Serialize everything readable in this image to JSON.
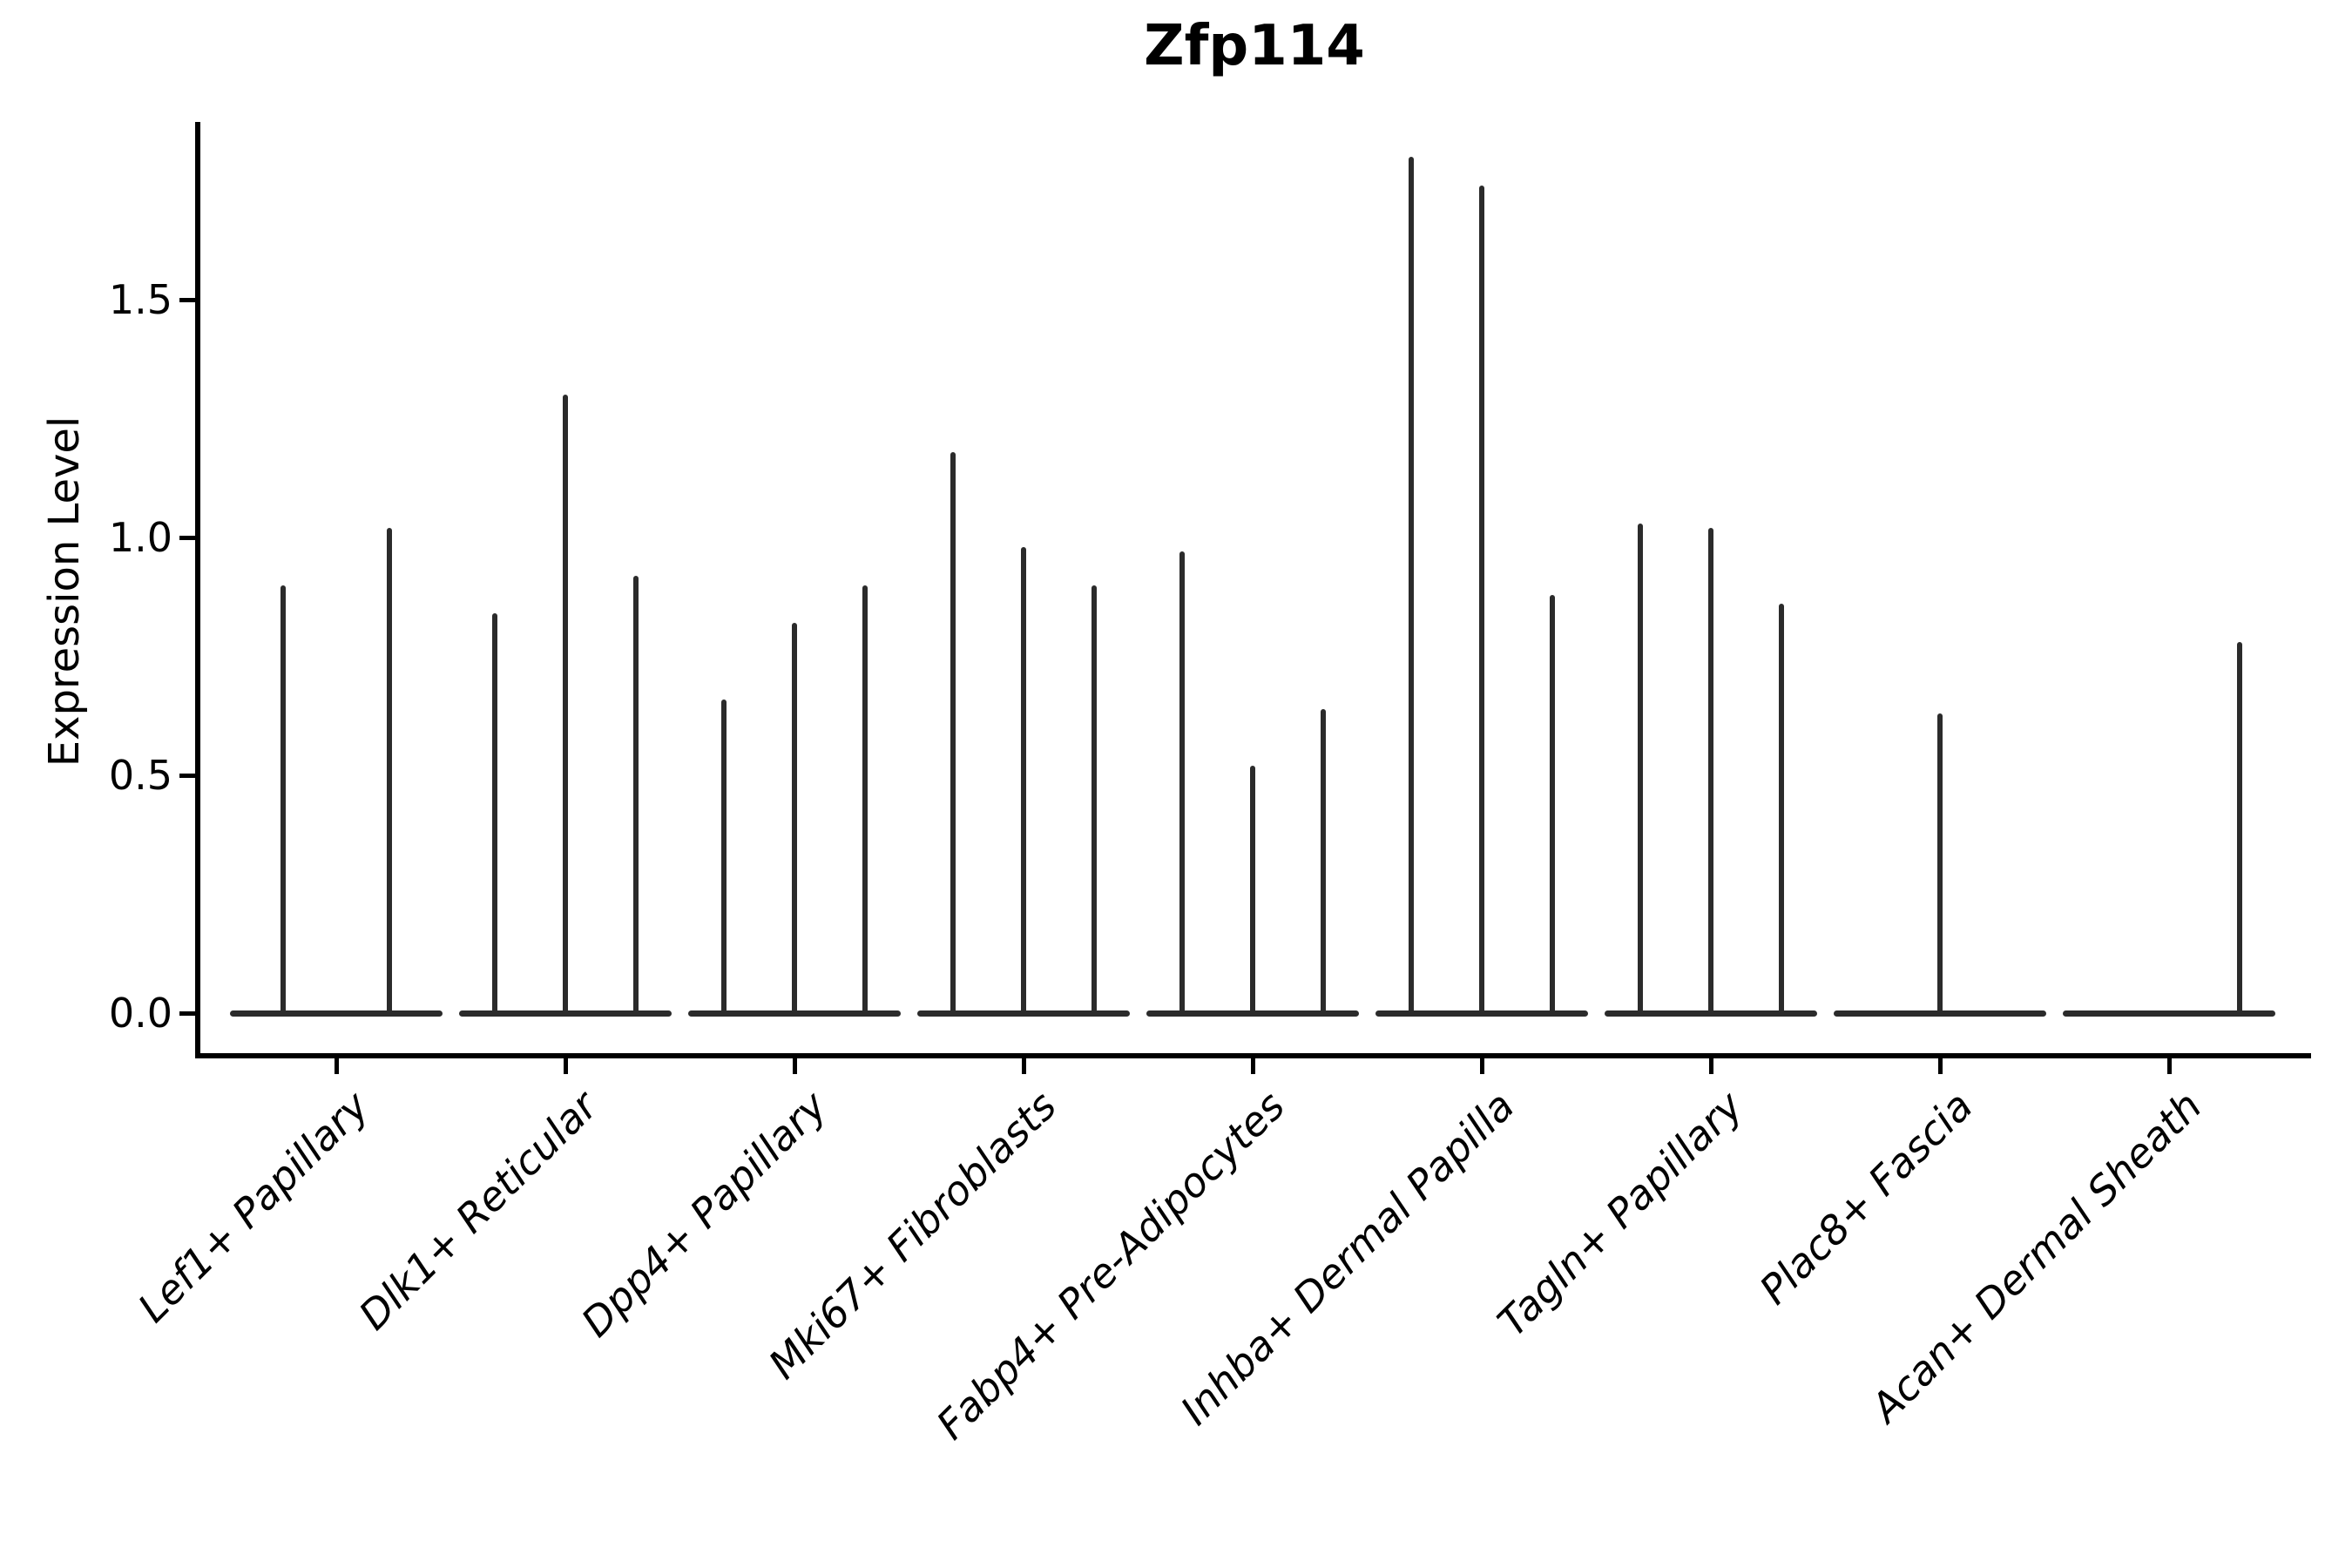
{
  "chart_data": {
    "type": "violin",
    "title": "Zfp114",
    "xlabel": "",
    "ylabel": "Expression Level",
    "ytick_labels": [
      "0.0",
      "0.5",
      "1.0",
      "1.5"
    ],
    "ytick_values": [
      0.0,
      0.5,
      1.0,
      1.5
    ],
    "ylim": [
      -0.1,
      1.87
    ],
    "grid": false,
    "legend": "none",
    "line_color": "#2b2b2b",
    "axis_color": "#000000",
    "text_color": "#000000",
    "background_color": "#ffffff",
    "categories": [
      "Lef1+ Papillary",
      "Dlk1+ Reticular",
      "Dpp4+ Papillary",
      "Mki67+ Fibroblasts",
      "Fabp4+ Pre-Adipocytes",
      "Inhba+ Dermal Papilla",
      "Tagln+ Papillary",
      "Plac8+ Fascia",
      "Acan+ Dermal Sheath"
    ],
    "groups": [
      {
        "category": "Lef1+ Papillary",
        "n_slots": 2,
        "spikes": [
          {
            "slot": 0,
            "max": 0.9
          },
          {
            "slot": 1,
            "max": 1.02
          }
        ]
      },
      {
        "category": "Dlk1+ Reticular",
        "n_slots": 3,
        "spikes": [
          {
            "slot": 0,
            "max": 0.84
          },
          {
            "slot": 1,
            "max": 1.3
          },
          {
            "slot": 2,
            "max": 0.92
          }
        ]
      },
      {
        "category": "Dpp4+ Papillary",
        "n_slots": 3,
        "spikes": [
          {
            "slot": 0,
            "max": 0.66
          },
          {
            "slot": 1,
            "max": 0.82
          },
          {
            "slot": 2,
            "max": 0.9
          }
        ]
      },
      {
        "category": "Mki67+ Fibroblasts",
        "n_slots": 3,
        "spikes": [
          {
            "slot": 0,
            "max": 1.18
          },
          {
            "slot": 1,
            "max": 0.98
          },
          {
            "slot": 2,
            "max": 0.9
          }
        ]
      },
      {
        "category": "Fabp4+ Pre-Adipocytes",
        "n_slots": 3,
        "spikes": [
          {
            "slot": 0,
            "max": 0.97
          },
          {
            "slot": 1,
            "max": 0.52
          },
          {
            "slot": 2,
            "max": 0.64
          }
        ]
      },
      {
        "category": "Inhba+ Dermal Papilla",
        "n_slots": 3,
        "spikes": [
          {
            "slot": 0,
            "max": 1.8
          },
          {
            "slot": 1,
            "max": 1.74
          },
          {
            "slot": 2,
            "max": 0.88
          }
        ]
      },
      {
        "category": "Tagln+ Papillary",
        "n_slots": 3,
        "spikes": [
          {
            "slot": 0,
            "max": 1.03
          },
          {
            "slot": 1,
            "max": 1.02
          },
          {
            "slot": 2,
            "max": 0.86
          }
        ]
      },
      {
        "category": "Plac8+ Fascia",
        "n_slots": 3,
        "spikes": [
          {
            "slot": 1,
            "max": 0.63
          }
        ]
      },
      {
        "category": "Acan+ Dermal Sheath",
        "n_slots": 3,
        "spikes": [
          {
            "slot": 2,
            "max": 0.78
          }
        ]
      }
    ]
  }
}
